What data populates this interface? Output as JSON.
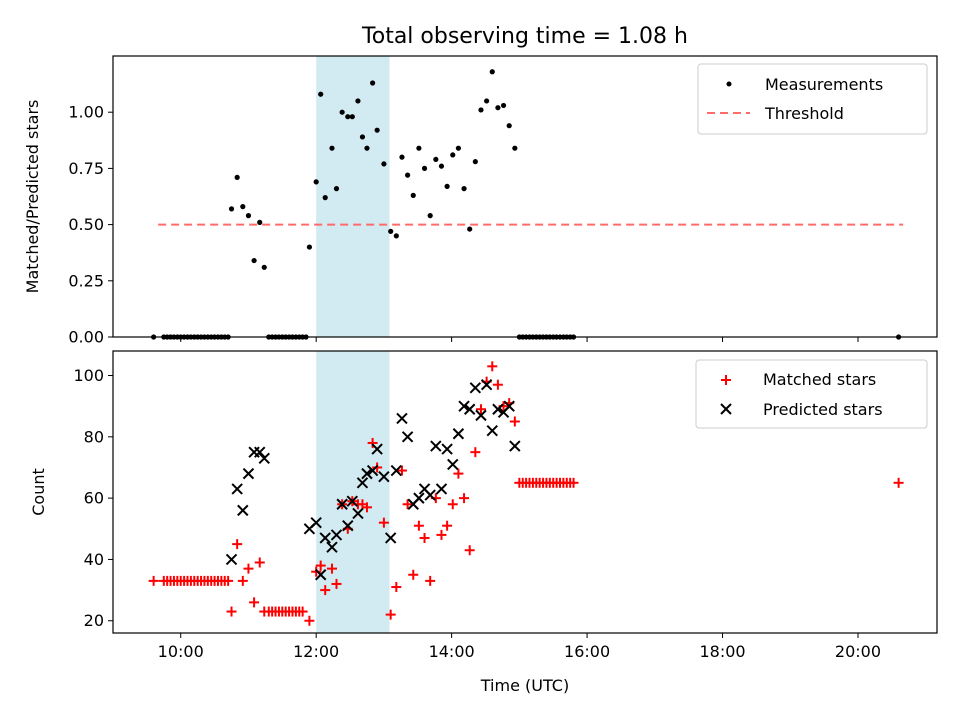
{
  "chart_data": [
    {
      "type": "scatter",
      "title": "Total observing time = 1.08 h",
      "xlabel": "",
      "ylabel": "Matched/Predicted stars",
      "xlim": [
        "09:00",
        "21:10"
      ],
      "ylim": [
        0,
        1.25
      ],
      "yticks": [
        "0.00",
        "0.25",
        "0.50",
        "0.75",
        "1.00"
      ],
      "shaded_band": {
        "x": [
          "12:00",
          "13:05"
        ],
        "color": "#add8e6"
      },
      "legend_position": "top-right",
      "series": [
        {
          "name": "Measurements",
          "marker": "dot",
          "color": "#000000",
          "points": [
            [
              "09:36",
              0
            ],
            [
              "09:45",
              0
            ],
            [
              "09:48",
              0
            ],
            [
              "09:51",
              0
            ],
            [
              "09:54",
              0
            ],
            [
              "09:57",
              0
            ],
            [
              "10:00",
              0
            ],
            [
              "10:03",
              0
            ],
            [
              "10:06",
              0
            ],
            [
              "10:09",
              0
            ],
            [
              "10:12",
              0
            ],
            [
              "10:15",
              0
            ],
            [
              "10:18",
              0
            ],
            [
              "10:21",
              0
            ],
            [
              "10:24",
              0
            ],
            [
              "10:27",
              0
            ],
            [
              "10:30",
              0
            ],
            [
              "10:33",
              0
            ],
            [
              "10:36",
              0
            ],
            [
              "10:39",
              0
            ],
            [
              "10:42",
              0
            ],
            [
              "10:45",
              0.57
            ],
            [
              "10:50",
              0.71
            ],
            [
              "10:55",
              0.58
            ],
            [
              "11:00",
              0.54
            ],
            [
              "11:05",
              0.34
            ],
            [
              "11:10",
              0.51
            ],
            [
              "11:14",
              0.31
            ],
            [
              "11:18",
              0
            ],
            [
              "11:21",
              0
            ],
            [
              "11:24",
              0
            ],
            [
              "11:27",
              0
            ],
            [
              "11:30",
              0
            ],
            [
              "11:33",
              0
            ],
            [
              "11:36",
              0
            ],
            [
              "11:39",
              0
            ],
            [
              "11:42",
              0
            ],
            [
              "11:45",
              0
            ],
            [
              "11:48",
              0
            ],
            [
              "11:51",
              0
            ],
            [
              "11:54",
              0.4
            ],
            [
              "12:00",
              0.69
            ],
            [
              "12:04",
              1.08
            ],
            [
              "12:08",
              0.62
            ],
            [
              "12:14",
              0.84
            ],
            [
              "12:18",
              0.66
            ],
            [
              "12:23",
              1.0
            ],
            [
              "12:28",
              0.98
            ],
            [
              "12:32",
              0.98
            ],
            [
              "12:37",
              1.05
            ],
            [
              "12:41",
              0.89
            ],
            [
              "12:45",
              0.84
            ],
            [
              "12:50",
              1.13
            ],
            [
              "12:54",
              0.92
            ],
            [
              "13:00",
              0.77
            ],
            [
              "13:06",
              0.47
            ],
            [
              "13:11",
              0.45
            ],
            [
              "13:16",
              0.8
            ],
            [
              "13:21",
              0.72
            ],
            [
              "13:26",
              0.63
            ],
            [
              "13:31",
              0.84
            ],
            [
              "13:36",
              0.75
            ],
            [
              "13:41",
              0.54
            ],
            [
              "13:46",
              0.79
            ],
            [
              "13:51",
              0.76
            ],
            [
              "13:56",
              0.67
            ],
            [
              "14:01",
              0.81
            ],
            [
              "14:06",
              0.84
            ],
            [
              "14:11",
              0.66
            ],
            [
              "14:16",
              0.48
            ],
            [
              "14:21",
              0.78
            ],
            [
              "14:26",
              1.01
            ],
            [
              "14:31",
              1.05
            ],
            [
              "14:36",
              1.18
            ],
            [
              "14:41",
              1.02
            ],
            [
              "14:46",
              1.03
            ],
            [
              "14:51",
              0.94
            ],
            [
              "14:56",
              0.84
            ],
            [
              "15:00",
              0
            ],
            [
              "15:03",
              0
            ],
            [
              "15:06",
              0
            ],
            [
              "15:09",
              0
            ],
            [
              "15:12",
              0
            ],
            [
              "15:15",
              0
            ],
            [
              "15:18",
              0
            ],
            [
              "15:21",
              0
            ],
            [
              "15:24",
              0
            ],
            [
              "15:27",
              0
            ],
            [
              "15:30",
              0
            ],
            [
              "15:33",
              0
            ],
            [
              "15:36",
              0
            ],
            [
              "15:39",
              0
            ],
            [
              "15:42",
              0
            ],
            [
              "15:45",
              0
            ],
            [
              "15:48",
              0
            ],
            [
              "20:36",
              0
            ]
          ]
        },
        {
          "name": "Threshold",
          "marker": "dashed-line",
          "color": "#ff6b6b",
          "points": [
            [
              "09:40",
              0.5
            ],
            [
              "20:40",
              0.5
            ]
          ]
        }
      ]
    },
    {
      "type": "scatter",
      "title": "",
      "xlabel": "Time (UTC)",
      "ylabel": "Count",
      "xlim": [
        "09:00",
        "21:10"
      ],
      "ylim": [
        16,
        108
      ],
      "xticks": [
        "10:00",
        "12:00",
        "14:00",
        "16:00",
        "18:00",
        "20:00"
      ],
      "yticks": [
        "20",
        "40",
        "60",
        "80",
        "100"
      ],
      "shaded_band": {
        "x": [
          "12:00",
          "13:05"
        ],
        "color": "#add8e6"
      },
      "legend_position": "top-right",
      "series": [
        {
          "name": "Matched stars",
          "marker": "plus",
          "color": "#ff0000",
          "points": [
            [
              "09:36",
              33
            ],
            [
              "09:45",
              33
            ],
            [
              "09:48",
              33
            ],
            [
              "09:51",
              33
            ],
            [
              "09:54",
              33
            ],
            [
              "09:57",
              33
            ],
            [
              "10:00",
              33
            ],
            [
              "10:03",
              33
            ],
            [
              "10:06",
              33
            ],
            [
              "10:09",
              33
            ],
            [
              "10:12",
              33
            ],
            [
              "10:15",
              33
            ],
            [
              "10:18",
              33
            ],
            [
              "10:21",
              33
            ],
            [
              "10:24",
              33
            ],
            [
              "10:27",
              33
            ],
            [
              "10:30",
              33
            ],
            [
              "10:33",
              33
            ],
            [
              "10:36",
              33
            ],
            [
              "10:39",
              33
            ],
            [
              "10:42",
              33
            ],
            [
              "10:45",
              23
            ],
            [
              "10:50",
              45
            ],
            [
              "10:55",
              33
            ],
            [
              "11:00",
              37
            ],
            [
              "11:05",
              26
            ],
            [
              "11:10",
              39
            ],
            [
              "11:14",
              23
            ],
            [
              "11:18",
              23
            ],
            [
              "11:21",
              23
            ],
            [
              "11:24",
              23
            ],
            [
              "11:27",
              23
            ],
            [
              "11:30",
              23
            ],
            [
              "11:33",
              23
            ],
            [
              "11:36",
              23
            ],
            [
              "11:39",
              23
            ],
            [
              "11:42",
              23
            ],
            [
              "11:45",
              23
            ],
            [
              "11:48",
              23
            ],
            [
              "11:54",
              20
            ],
            [
              "12:00",
              36
            ],
            [
              "12:04",
              38
            ],
            [
              "12:08",
              30
            ],
            [
              "12:14",
              37
            ],
            [
              "12:18",
              32
            ],
            [
              "12:23",
              58
            ],
            [
              "12:28",
              50
            ],
            [
              "12:32",
              59
            ],
            [
              "12:37",
              58
            ],
            [
              "12:41",
              58
            ],
            [
              "12:45",
              57
            ],
            [
              "12:50",
              78
            ],
            [
              "12:54",
              70
            ],
            [
              "13:00",
              52
            ],
            [
              "13:06",
              22
            ],
            [
              "13:11",
              31
            ],
            [
              "13:16",
              69
            ],
            [
              "13:21",
              58
            ],
            [
              "13:26",
              35
            ],
            [
              "13:31",
              51
            ],
            [
              "13:36",
              47
            ],
            [
              "13:41",
              33
            ],
            [
              "13:46",
              60
            ],
            [
              "13:51",
              48
            ],
            [
              "13:56",
              51
            ],
            [
              "14:01",
              58
            ],
            [
              "14:06",
              68
            ],
            [
              "14:11",
              60
            ],
            [
              "14:16",
              43
            ],
            [
              "14:21",
              75
            ],
            [
              "14:26",
              89
            ],
            [
              "14:31",
              98
            ],
            [
              "14:36",
              103
            ],
            [
              "14:41",
              97
            ],
            [
              "14:46",
              90
            ],
            [
              "14:51",
              91
            ],
            [
              "14:56",
              85
            ],
            [
              "15:00",
              65
            ],
            [
              "15:03",
              65
            ],
            [
              "15:06",
              65
            ],
            [
              "15:09",
              65
            ],
            [
              "15:12",
              65
            ],
            [
              "15:15",
              65
            ],
            [
              "15:18",
              65
            ],
            [
              "15:21",
              65
            ],
            [
              "15:24",
              65
            ],
            [
              "15:27",
              65
            ],
            [
              "15:30",
              65
            ],
            [
              "15:33",
              65
            ],
            [
              "15:36",
              65
            ],
            [
              "15:39",
              65
            ],
            [
              "15:42",
              65
            ],
            [
              "15:45",
              65
            ],
            [
              "15:48",
              65
            ],
            [
              "20:36",
              65
            ]
          ]
        },
        {
          "name": "Predicted stars",
          "marker": "x",
          "color": "#000000",
          "points": [
            [
              "10:45",
              40
            ],
            [
              "10:50",
              63
            ],
            [
              "10:55",
              56
            ],
            [
              "11:00",
              68
            ],
            [
              "11:05",
              75
            ],
            [
              "11:10",
              75
            ],
            [
              "11:14",
              73
            ],
            [
              "11:54",
              50
            ],
            [
              "12:00",
              52
            ],
            [
              "12:04",
              35
            ],
            [
              "12:08",
              47
            ],
            [
              "12:14",
              44
            ],
            [
              "12:18",
              48
            ],
            [
              "12:23",
              58
            ],
            [
              "12:28",
              51
            ],
            [
              "12:32",
              59
            ],
            [
              "12:37",
              55
            ],
            [
              "12:41",
              65
            ],
            [
              "12:45",
              68
            ],
            [
              "12:50",
              69
            ],
            [
              "12:54",
              76
            ],
            [
              "13:00",
              67
            ],
            [
              "13:06",
              47
            ],
            [
              "13:11",
              69
            ],
            [
              "13:16",
              86
            ],
            [
              "13:21",
              80
            ],
            [
              "13:26",
              58
            ],
            [
              "13:31",
              60
            ],
            [
              "13:36",
              63
            ],
            [
              "13:41",
              61
            ],
            [
              "13:46",
              77
            ],
            [
              "13:51",
              63
            ],
            [
              "13:56",
              76
            ],
            [
              "14:01",
              71
            ],
            [
              "14:06",
              81
            ],
            [
              "14:11",
              90
            ],
            [
              "14:16",
              89
            ],
            [
              "14:21",
              96
            ],
            [
              "14:26",
              87
            ],
            [
              "14:31",
              97
            ],
            [
              "14:36",
              82
            ],
            [
              "14:41",
              89
            ],
            [
              "14:46",
              88
            ],
            [
              "14:51",
              90
            ],
            [
              "14:56",
              77
            ]
          ]
        }
      ]
    }
  ]
}
